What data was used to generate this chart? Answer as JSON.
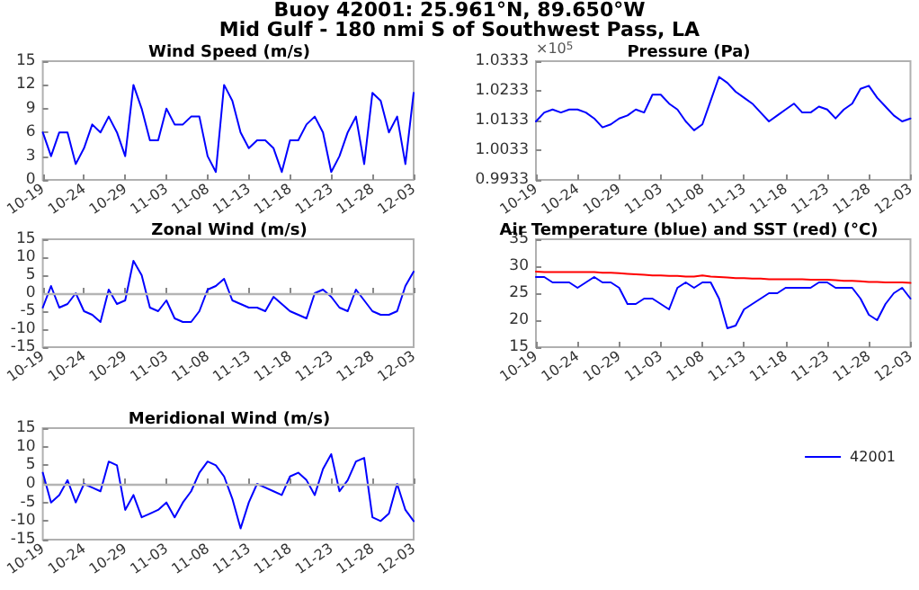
{
  "chart_data": [
    {
      "type": "line",
      "title": "Wind Speed (m/s)",
      "annotations": [
        "Buoy 42001: 25.961°N, 89.650°W",
        "Mid Gulf - 180 nmi S of Southwest Pass, LA"
      ],
      "x": [
        "--10-19",
        "--10-20",
        "--10-21",
        "--10-22",
        "--10-23",
        "--10-24",
        "--10-25",
        "--10-26",
        "--10-27",
        "--10-28",
        "--10-29",
        "--10-30",
        "--10-31",
        "--11-01",
        "--11-02",
        "--11-03",
        "--11-04",
        "--11-05",
        "--11-06",
        "--11-07",
        "--11-08",
        "--11-09",
        "--11-10",
        "--11-11",
        "--11-12",
        "--11-13",
        "--11-14",
        "--11-15",
        "--11-16",
        "--11-17",
        "--11-18",
        "--11-19",
        "--11-20",
        "--11-21",
        "--11-22",
        "--11-23",
        "--11-24",
        "--11-25",
        "--11-26",
        "--11-27",
        "--11-28",
        "--11-29",
        "--11-30",
        "--12-01",
        "--12-02",
        "--12-03"
      ],
      "series": [
        {
          "color": "#0000ff",
          "values": [
            6,
            3,
            6,
            6,
            2,
            4,
            7,
            6,
            8,
            6,
            3,
            12,
            9,
            5,
            5,
            9,
            7,
            7,
            8,
            8,
            3,
            1,
            12,
            10,
            6,
            4,
            5,
            5,
            4,
            1,
            5,
            5,
            7,
            8,
            6,
            1,
            3,
            6,
            8,
            2,
            11,
            10,
            6,
            8,
            2,
            11
          ]
        }
      ],
      "xlim": [
        "--10-19",
        "--12-03"
      ],
      "xticks": [
        {
          "value": "--10-19",
          "label": "10-19"
        },
        {
          "value": "--10-24",
          "label": "10-24"
        },
        {
          "value": "--10-29",
          "label": "10-29"
        },
        {
          "value": "--11-03",
          "label": "11-03"
        },
        {
          "value": "--11-08",
          "label": "11-08"
        },
        {
          "value": "--11-13",
          "label": "11-13"
        },
        {
          "value": "--11-18",
          "label": "11-18"
        },
        {
          "value": "--11-23",
          "label": "11-23"
        },
        {
          "value": "--11-28",
          "label": "11-28"
        },
        {
          "value": "--12-03",
          "label": "12-03"
        }
      ],
      "ylim": [
        0,
        15
      ],
      "yticks": [
        0,
        3,
        6,
        9,
        12,
        15
      ],
      "marker": "none",
      "line_style": "solid"
    },
    {
      "type": "line",
      "title": "Pressure (Pa)",
      "annotations": [
        "×10$^{5}$"
      ],
      "x": [
        "--10-19",
        "--10-20",
        "--10-21",
        "--10-22",
        "--10-23",
        "--10-24",
        "--10-25",
        "--10-26",
        "--10-27",
        "--10-28",
        "--10-29",
        "--10-30",
        "--10-31",
        "--11-01",
        "--11-02",
        "--11-03",
        "--11-04",
        "--11-05",
        "--11-06",
        "--11-07",
        "--11-08",
        "--11-09",
        "--11-10",
        "--11-11",
        "--11-12",
        "--11-13",
        "--11-14",
        "--11-15",
        "--11-16",
        "--11-17",
        "--11-18",
        "--11-19",
        "--11-20",
        "--11-21",
        "--11-22",
        "--11-23",
        "--11-24",
        "--11-25",
        "--11-26",
        "--11-27",
        "--11-28",
        "--11-29",
        "--11-30",
        "--12-01",
        "--12-02",
        "--12-03"
      ],
      "series": [
        {
          "color": "#0000ff",
          "values": [
            1.013,
            1.016,
            1.017,
            1.016,
            1.017,
            1.017,
            1.016,
            1.014,
            1.011,
            1.012,
            1.014,
            1.015,
            1.017,
            1.016,
            1.022,
            1.022,
            1.019,
            1.017,
            1.013,
            1.01,
            1.012,
            1.02,
            1.028,
            1.026,
            1.023,
            1.021,
            1.019,
            1.016,
            1.013,
            1.015,
            1.017,
            1.019,
            1.016,
            1.016,
            1.018,
            1.017,
            1.014,
            1.017,
            1.019,
            1.024,
            1.025,
            1.021,
            1.018,
            1.015,
            1.013,
            1.014
          ]
        }
      ],
      "xlim": [
        "--10-19",
        "--12-03"
      ],
      "xticks": [
        {
          "value": "--10-19",
          "label": "10-19"
        },
        {
          "value": "--10-24",
          "label": "10-24"
        },
        {
          "value": "--10-29",
          "label": "10-29"
        },
        {
          "value": "--11-03",
          "label": "11-03"
        },
        {
          "value": "--11-08",
          "label": "11-08"
        },
        {
          "value": "--11-13",
          "label": "11-13"
        },
        {
          "value": "--11-18",
          "label": "11-18"
        },
        {
          "value": "--11-23",
          "label": "11-23"
        },
        {
          "value": "--11-28",
          "label": "11-28"
        },
        {
          "value": "--12-03",
          "label": "12-03"
        }
      ],
      "ylim": [
        0.9933,
        1.0333
      ],
      "yticks": [
        0.9933,
        1.0033,
        1.0133,
        1.0233,
        1.0333
      ],
      "marker": "none",
      "line_style": "solid"
    },
    {
      "type": "line",
      "title": "Zonal Wind (m/s)",
      "x": [
        "--10-19",
        "--10-20",
        "--10-21",
        "--10-22",
        "--10-23",
        "--10-24",
        "--10-25",
        "--10-26",
        "--10-27",
        "--10-28",
        "--10-29",
        "--10-30",
        "--10-31",
        "--11-01",
        "--11-02",
        "--11-03",
        "--11-04",
        "--11-05",
        "--11-06",
        "--11-07",
        "--11-08",
        "--11-09",
        "--11-10",
        "--11-11",
        "--11-12",
        "--11-13",
        "--11-14",
        "--11-15",
        "--11-16",
        "--11-17",
        "--11-18",
        "--11-19",
        "--11-20",
        "--11-21",
        "--11-22",
        "--11-23",
        "--11-24",
        "--11-25",
        "--11-26",
        "--11-27",
        "--11-28",
        "--11-29",
        "--11-30",
        "--12-01",
        "--12-02",
        "--12-03"
      ],
      "series": [
        {
          "color": "#0000ff",
          "values": [
            -4,
            2,
            -4,
            -3,
            0,
            -5,
            -6,
            -8,
            1,
            -3,
            -2,
            9,
            5,
            -4,
            -5,
            -2,
            -7,
            -8,
            -8,
            -5,
            1,
            2,
            4,
            -2,
            -3,
            -4,
            -4,
            -5,
            -1,
            -3,
            -5,
            -6,
            -7,
            0,
            1,
            -1,
            -4,
            -5,
            1,
            -2,
            -5,
            -6,
            -6,
            -5,
            2,
            6
          ]
        }
      ],
      "xlim": [
        "--10-19",
        "--12-03"
      ],
      "xticks": [
        {
          "value": "--10-19",
          "label": "10-19"
        },
        {
          "value": "--10-24",
          "label": "10-24"
        },
        {
          "value": "--10-29",
          "label": "10-29"
        },
        {
          "value": "--11-03",
          "label": "11-03"
        },
        {
          "value": "--11-08",
          "label": "11-08"
        },
        {
          "value": "--11-13",
          "label": "11-13"
        },
        {
          "value": "--11-18",
          "label": "11-18"
        },
        {
          "value": "--11-23",
          "label": "11-23"
        },
        {
          "value": "--11-28",
          "label": "11-28"
        },
        {
          "value": "--12-03",
          "label": "12-03"
        }
      ],
      "ylim": [
        -15,
        15
      ],
      "yticks": [
        -15,
        -10,
        -5,
        0,
        5,
        10,
        15
      ],
      "ref_lines": [
        {
          "axis": "y",
          "value": 0,
          "color": "#b4b4b4"
        }
      ],
      "marker": "none",
      "line_style": "solid"
    },
    {
      "type": "line",
      "title": "Air Temperature (blue) and SST (red) (°C)",
      "x": [
        "--10-19",
        "--10-20",
        "--10-21",
        "--10-22",
        "--10-23",
        "--10-24",
        "--10-25",
        "--10-26",
        "--10-27",
        "--10-28",
        "--10-29",
        "--10-30",
        "--10-31",
        "--11-01",
        "--11-02",
        "--11-03",
        "--11-04",
        "--11-05",
        "--11-06",
        "--11-07",
        "--11-08",
        "--11-09",
        "--11-10",
        "--11-11",
        "--11-12",
        "--11-13",
        "--11-14",
        "--11-15",
        "--11-16",
        "--11-17",
        "--11-18",
        "--11-19",
        "--11-20",
        "--11-21",
        "--11-22",
        "--11-23",
        "--11-24",
        "--11-25",
        "--11-26",
        "--11-27",
        "--11-28",
        "--11-29",
        "--11-30",
        "--12-01",
        "--12-02",
        "--12-03"
      ],
      "series": [
        {
          "name": "42001",
          "color": "#0000ff",
          "values": [
            28,
            28,
            27,
            27,
            27,
            26,
            27,
            28,
            27,
            27,
            26,
            23,
            23,
            24,
            24,
            23,
            22,
            26,
            27,
            26,
            27,
            27,
            24,
            18.5,
            19,
            22,
            23,
            24,
            25,
            25,
            26,
            26,
            26,
            26,
            27,
            27,
            26,
            26,
            26,
            24,
            21,
            20,
            23,
            25,
            26,
            24
          ]
        },
        {
          "color": "#ff0000",
          "values": [
            29,
            28.9,
            28.9,
            28.9,
            28.9,
            28.9,
            28.9,
            28.9,
            28.8,
            28.8,
            28.7,
            28.6,
            28.5,
            28.4,
            28.3,
            28.3,
            28.2,
            28.2,
            28.1,
            28.1,
            28.3,
            28.1,
            28,
            27.9,
            27.8,
            27.8,
            27.7,
            27.7,
            27.6,
            27.6,
            27.6,
            27.6,
            27.6,
            27.5,
            27.5,
            27.5,
            27.4,
            27.3,
            27.3,
            27.2,
            27.1,
            27.1,
            27,
            27,
            27,
            26.9
          ]
        }
      ],
      "xlim": [
        "--10-19",
        "--12-03"
      ],
      "xticks": [
        {
          "value": "--10-19",
          "label": "10-19"
        },
        {
          "value": "--10-24",
          "label": "10-24"
        },
        {
          "value": "--10-29",
          "label": "10-29"
        },
        {
          "value": "--11-03",
          "label": "11-03"
        },
        {
          "value": "--11-08",
          "label": "11-08"
        },
        {
          "value": "--11-13",
          "label": "11-13"
        },
        {
          "value": "--11-18",
          "label": "11-18"
        },
        {
          "value": "--11-23",
          "label": "11-23"
        },
        {
          "value": "--11-28",
          "label": "11-28"
        },
        {
          "value": "--12-03",
          "label": "12-03"
        }
      ],
      "ylim": [
        15,
        35
      ],
      "yticks": [
        15,
        20,
        25,
        30,
        35
      ],
      "legend": "bottom right",
      "marker": "none",
      "line_style": "solid"
    },
    {
      "type": "line",
      "title": "Meridional Wind (m/s)",
      "x": [
        "--10-19",
        "--10-20",
        "--10-21",
        "--10-22",
        "--10-23",
        "--10-24",
        "--10-25",
        "--10-26",
        "--10-27",
        "--10-28",
        "--10-29",
        "--10-30",
        "--10-31",
        "--11-01",
        "--11-02",
        "--11-03",
        "--11-04",
        "--11-05",
        "--11-06",
        "--11-07",
        "--11-08",
        "--11-09",
        "--11-10",
        "--11-11",
        "--11-12",
        "--11-13",
        "--11-14",
        "--11-15",
        "--11-16",
        "--11-17",
        "--11-18",
        "--11-19",
        "--11-20",
        "--11-21",
        "--11-22",
        "--11-23",
        "--11-24",
        "--11-25",
        "--11-26",
        "--11-27",
        "--11-28",
        "--11-29",
        "--11-30",
        "--12-01",
        "--12-02",
        "--12-03"
      ],
      "series": [
        {
          "color": "#0000ff",
          "values": [
            3,
            -5,
            -3,
            1,
            -5,
            0,
            -1,
            -2,
            6,
            5,
            -7,
            -3,
            -9,
            -8,
            -7,
            -5,
            -9,
            -5,
            -2,
            3,
            6,
            5,
            2,
            -4,
            -12,
            -5,
            0,
            -1,
            -2,
            -3,
            2,
            3,
            1,
            -3,
            4,
            8,
            -2,
            1,
            6,
            7,
            -9,
            -10,
            -8,
            0,
            -7,
            -10
          ]
        }
      ],
      "xlim": [
        "--10-19",
        "--12-03"
      ],
      "xticks": [
        {
          "value": "--10-19",
          "label": "10-19"
        },
        {
          "value": "--10-24",
          "label": "10-24"
        },
        {
          "value": "--10-29",
          "label": "10-29"
        },
        {
          "value": "--11-03",
          "label": "11-03"
        },
        {
          "value": "--11-08",
          "label": "11-08"
        },
        {
          "value": "--11-13",
          "label": "11-13"
        },
        {
          "value": "--11-18",
          "label": "11-18"
        },
        {
          "value": "--11-23",
          "label": "11-23"
        },
        {
          "value": "--11-28",
          "label": "11-28"
        },
        {
          "value": "--12-03",
          "label": "12-03"
        }
      ],
      "ylim": [
        -15,
        15
      ],
      "yticks": [
        -15,
        -10,
        -5,
        0,
        5,
        10,
        15
      ],
      "ref_lines": [
        {
          "axis": "y",
          "value": 0,
          "color": "#b4b4b4"
        }
      ],
      "marker": "none",
      "line_style": "solid"
    }
  ]
}
